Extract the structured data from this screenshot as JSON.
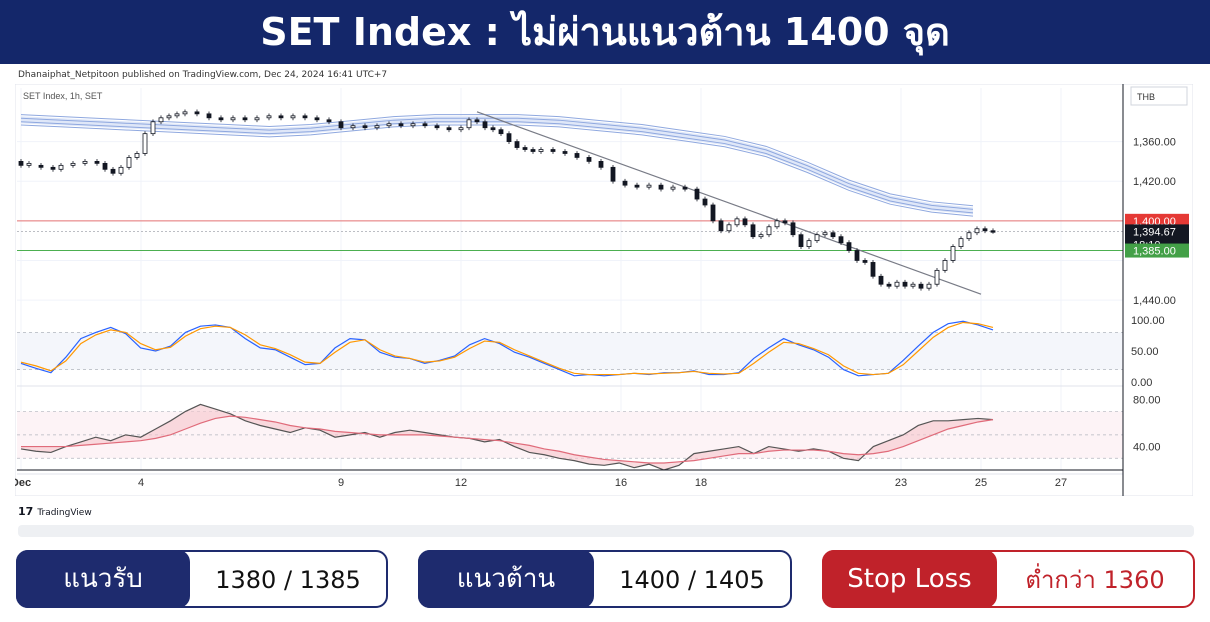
{
  "header": {
    "title": "SET Index : ไม่ผ่านแนวต้าน 1400 จุด"
  },
  "attribution": "Dhanaiphat_Netpitoon published on TradingView.com, Dec 24, 2024 16:41 UTC+7",
  "footer": {
    "logo_text": "TradingView"
  },
  "levels": {
    "support": {
      "label": "แนวรับ",
      "value": "1380 / 1385"
    },
    "resistance": {
      "label": "แนวต้าน",
      "value": "1400 / 1405"
    },
    "stop": {
      "label": "Stop Loss",
      "value": "ต่ำกว่า 1360"
    }
  },
  "colors": {
    "navy": "#1e2b6e",
    "stop_red": "#c0222a",
    "resistance_line": "#e57373",
    "support_line": "#4caf50",
    "ribbon": "#8fa8df",
    "stoch_k": "#2962ff",
    "stoch_d": "#ff9800",
    "rsi": "#555555",
    "rsi_ma": "#e06b7a"
  },
  "chart_data": [
    {
      "type": "candlestick",
      "symbol_label": "SET Index, 1h, SET",
      "currency": "THB",
      "x_tick_labels": [
        "Dec",
        "4",
        "9",
        "12",
        "16",
        "18",
        "23",
        "25",
        "27"
      ],
      "y_ticks": [
        1360.0,
        1380.0,
        1400.0,
        1420.0,
        1440.0
      ],
      "y_tick_labels": [
        "1,360.00",
        "1,420.00",
        "1,440.00"
      ],
      "ylim": [
        1350,
        1460
      ],
      "price_tags": {
        "resistance": "1,400.00",
        "current": "1,394.67",
        "countdown": "18:10",
        "support": "1,385.00"
      },
      "horizontal_lines": {
        "resistance": 1400,
        "current": 1394.67,
        "support": 1385
      },
      "ribbon": [
        1451,
        1450,
        1449,
        1448,
        1447,
        1446,
        1445,
        1446,
        1448,
        1450,
        1451,
        1451,
        1451,
        1450,
        1448,
        1446,
        1443,
        1440,
        1435,
        1427,
        1418,
        1411,
        1407,
        1405
      ],
      "trendline": [
        [
          12.4,
          1455
        ],
        [
          25,
          1363
        ]
      ],
      "candles": [
        {
          "x": 1.0,
          "o": 1430,
          "c": 1428
        },
        {
          "x": 1.2,
          "o": 1428,
          "c": 1429
        },
        {
          "x": 1.5,
          "o": 1428,
          "c": 1427
        },
        {
          "x": 1.8,
          "o": 1427,
          "c": 1426
        },
        {
          "x": 2.0,
          "o": 1426,
          "c": 1428
        },
        {
          "x": 2.3,
          "o": 1428,
          "c": 1429
        },
        {
          "x": 2.6,
          "o": 1429,
          "c": 1430
        },
        {
          "x": 2.9,
          "o": 1430,
          "c": 1429
        },
        {
          "x": 3.1,
          "o": 1429,
          "c": 1426
        },
        {
          "x": 3.3,
          "o": 1426,
          "c": 1424
        },
        {
          "x": 3.5,
          "o": 1424,
          "c": 1427
        },
        {
          "x": 3.7,
          "o": 1427,
          "c": 1432
        },
        {
          "x": 3.9,
          "o": 1432,
          "c": 1434
        },
        {
          "x": 4.1,
          "o": 1434,
          "c": 1444
        },
        {
          "x": 4.3,
          "o": 1444,
          "c": 1450
        },
        {
          "x": 4.5,
          "o": 1450,
          "c": 1452
        },
        {
          "x": 4.7,
          "o": 1452,
          "c": 1453
        },
        {
          "x": 4.9,
          "o": 1453,
          "c": 1454
        },
        {
          "x": 5.1,
          "o": 1454,
          "c": 1455
        },
        {
          "x": 5.4,
          "o": 1455,
          "c": 1454
        },
        {
          "x": 5.7,
          "o": 1454,
          "c": 1452
        },
        {
          "x": 6.0,
          "o": 1452,
          "c": 1451
        },
        {
          "x": 6.3,
          "o": 1451,
          "c": 1452
        },
        {
          "x": 6.6,
          "o": 1452,
          "c": 1451
        },
        {
          "x": 6.9,
          "o": 1451,
          "c": 1452
        },
        {
          "x": 7.2,
          "o": 1452,
          "c": 1453
        },
        {
          "x": 7.5,
          "o": 1453,
          "c": 1452
        },
        {
          "x": 7.8,
          "o": 1452,
          "c": 1453
        },
        {
          "x": 8.1,
          "o": 1453,
          "c": 1452
        },
        {
          "x": 8.4,
          "o": 1452,
          "c": 1451
        },
        {
          "x": 8.7,
          "o": 1451,
          "c": 1450
        },
        {
          "x": 9.0,
          "o": 1450,
          "c": 1447
        },
        {
          "x": 9.3,
          "o": 1447,
          "c": 1448
        },
        {
          "x": 9.6,
          "o": 1448,
          "c": 1447
        },
        {
          "x": 9.9,
          "o": 1447,
          "c": 1448
        },
        {
          "x": 10.2,
          "o": 1448,
          "c": 1449
        },
        {
          "x": 10.5,
          "o": 1449,
          "c": 1448
        },
        {
          "x": 10.8,
          "o": 1448,
          "c": 1449
        },
        {
          "x": 11.1,
          "o": 1449,
          "c": 1448
        },
        {
          "x": 11.4,
          "o": 1448,
          "c": 1447
        },
        {
          "x": 11.7,
          "o": 1447,
          "c": 1446
        },
        {
          "x": 12.0,
          "o": 1446,
          "c": 1447
        },
        {
          "x": 12.2,
          "o": 1447,
          "c": 1451
        },
        {
          "x": 12.4,
          "o": 1451,
          "c": 1450
        },
        {
          "x": 12.6,
          "o": 1450,
          "c": 1447
        },
        {
          "x": 12.8,
          "o": 1447,
          "c": 1446
        },
        {
          "x": 13.0,
          "o": 1446,
          "c": 1444
        },
        {
          "x": 13.2,
          "o": 1444,
          "c": 1440
        },
        {
          "x": 13.4,
          "o": 1440,
          "c": 1437
        },
        {
          "x": 13.6,
          "o": 1437,
          "c": 1436
        },
        {
          "x": 13.8,
          "o": 1436,
          "c": 1435
        },
        {
          "x": 14.0,
          "o": 1435,
          "c": 1436
        },
        {
          "x": 14.3,
          "o": 1436,
          "c": 1435
        },
        {
          "x": 14.6,
          "o": 1435,
          "c": 1434
        },
        {
          "x": 14.9,
          "o": 1434,
          "c": 1432
        },
        {
          "x": 15.2,
          "o": 1432,
          "c": 1430
        },
        {
          "x": 15.5,
          "o": 1430,
          "c": 1427
        },
        {
          "x": 15.8,
          "o": 1427,
          "c": 1420
        },
        {
          "x": 16.1,
          "o": 1420,
          "c": 1418
        },
        {
          "x": 16.4,
          "o": 1418,
          "c": 1417
        },
        {
          "x": 16.7,
          "o": 1417,
          "c": 1418
        },
        {
          "x": 17.0,
          "o": 1418,
          "c": 1416
        },
        {
          "x": 17.3,
          "o": 1416,
          "c": 1417
        },
        {
          "x": 17.6,
          "o": 1417,
          "c": 1416
        },
        {
          "x": 17.9,
          "o": 1416,
          "c": 1411
        },
        {
          "x": 18.1,
          "o": 1411,
          "c": 1408
        },
        {
          "x": 18.3,
          "o": 1408,
          "c": 1400
        },
        {
          "x": 18.5,
          "o": 1400,
          "c": 1395
        },
        {
          "x": 18.7,
          "o": 1395,
          "c": 1398
        },
        {
          "x": 18.9,
          "o": 1398,
          "c": 1401
        },
        {
          "x": 19.1,
          "o": 1401,
          "c": 1398
        },
        {
          "x": 19.3,
          "o": 1398,
          "c": 1392
        },
        {
          "x": 19.5,
          "o": 1392,
          "c": 1393
        },
        {
          "x": 19.7,
          "o": 1393,
          "c": 1397
        },
        {
          "x": 19.9,
          "o": 1397,
          "c": 1400
        },
        {
          "x": 20.1,
          "o": 1400,
          "c": 1399
        },
        {
          "x": 20.3,
          "o": 1399,
          "c": 1393
        },
        {
          "x": 20.5,
          "o": 1393,
          "c": 1387
        },
        {
          "x": 20.7,
          "o": 1387,
          "c": 1390
        },
        {
          "x": 20.9,
          "o": 1390,
          "c": 1393
        },
        {
          "x": 21.1,
          "o": 1393,
          "c": 1394
        },
        {
          "x": 21.3,
          "o": 1394,
          "c": 1392
        },
        {
          "x": 21.5,
          "o": 1392,
          "c": 1389
        },
        {
          "x": 21.7,
          "o": 1389,
          "c": 1385
        },
        {
          "x": 21.9,
          "o": 1385,
          "c": 1380
        },
        {
          "x": 22.1,
          "o": 1380,
          "c": 1379
        },
        {
          "x": 22.3,
          "o": 1379,
          "c": 1372
        },
        {
          "x": 22.5,
          "o": 1372,
          "c": 1368
        },
        {
          "x": 22.7,
          "o": 1368,
          "c": 1367
        },
        {
          "x": 22.9,
          "o": 1367,
          "c": 1369
        },
        {
          "x": 23.1,
          "o": 1369,
          "c": 1367
        },
        {
          "x": 23.3,
          "o": 1367,
          "c": 1368
        },
        {
          "x": 23.5,
          "o": 1368,
          "c": 1366
        },
        {
          "x": 23.7,
          "o": 1366,
          "c": 1368
        },
        {
          "x": 23.9,
          "o": 1368,
          "c": 1375
        },
        {
          "x": 24.1,
          "o": 1375,
          "c": 1380
        },
        {
          "x": 24.3,
          "o": 1380,
          "c": 1387
        },
        {
          "x": 24.5,
          "o": 1387,
          "c": 1391
        },
        {
          "x": 24.7,
          "o": 1391,
          "c": 1394
        },
        {
          "x": 24.9,
          "o": 1394,
          "c": 1396
        },
        {
          "x": 25.1,
          "o": 1396,
          "c": 1395
        },
        {
          "x": 25.3,
          "o": 1395,
          "c": 1394.67
        }
      ]
    },
    {
      "type": "line",
      "indicator": "stochastic",
      "y_tick_labels": [
        "100.00",
        "50.00",
        "0.00"
      ],
      "ylim": [
        0,
        100
      ],
      "guides": [
        80,
        20
      ],
      "series": [
        {
          "values": [
            30,
            22,
            15,
            40,
            70,
            80,
            88,
            78,
            55,
            50,
            58,
            80,
            90,
            92,
            88,
            70,
            55,
            52,
            40,
            28,
            30,
            55,
            70,
            68,
            48,
            40,
            38,
            30,
            35,
            42,
            60,
            70,
            62,
            48,
            40,
            30,
            20,
            10,
            12,
            10,
            12,
            14,
            12,
            15,
            15,
            18,
            12,
            12,
            15,
            38,
            55,
            70,
            60,
            52,
            40,
            20,
            10,
            12,
            14,
            35,
            58,
            80,
            94,
            98,
            92,
            84
          ]
        },
        {
          "values": [
            32,
            26,
            18,
            34,
            62,
            76,
            84,
            80,
            62,
            52,
            56,
            74,
            86,
            90,
            88,
            76,
            60,
            54,
            44,
            32,
            30,
            48,
            64,
            68,
            52,
            42,
            38,
            32,
            34,
            40,
            54,
            66,
            64,
            52,
            42,
            32,
            22,
            14,
            12,
            12,
            12,
            14,
            13,
            14,
            15,
            17,
            14,
            13,
            14,
            30,
            48,
            64,
            62,
            54,
            44,
            26,
            14,
            12,
            14,
            28,
            50,
            72,
            88,
            96,
            94,
            88
          ]
        }
      ]
    },
    {
      "type": "line",
      "indicator": "rsi",
      "y_tick_labels": [
        "80.00",
        "40.00"
      ],
      "ylim": [
        20,
        90
      ],
      "guides": [
        70,
        50,
        30
      ],
      "series": [
        {
          "values": [
            38,
            36,
            35,
            40,
            44,
            48,
            45,
            50,
            48,
            55,
            62,
            70,
            76,
            72,
            68,
            62,
            58,
            55,
            52,
            56,
            54,
            48,
            50,
            52,
            48,
            52,
            54,
            52,
            50,
            48,
            47,
            44,
            46,
            40,
            35,
            33,
            30,
            28,
            25,
            24,
            26,
            22,
            25,
            20,
            24,
            34,
            36,
            38,
            40,
            34,
            40,
            38,
            36,
            38,
            36,
            30,
            28,
            40,
            45,
            50,
            58,
            62,
            62,
            63,
            64,
            63
          ]
        },
        {
          "values": [
            40,
            40,
            40,
            40,
            41,
            42,
            43,
            44,
            45,
            47,
            50,
            55,
            60,
            64,
            66,
            65,
            63,
            61,
            58,
            56,
            55,
            53,
            52,
            51,
            50,
            50,
            50,
            50,
            49,
            48,
            47,
            46,
            45,
            43,
            41,
            38,
            36,
            33,
            31,
            29,
            28,
            27,
            26,
            26,
            27,
            28,
            30,
            32,
            34,
            34,
            36,
            37,
            37,
            37,
            36,
            34,
            33,
            34,
            36,
            40,
            45,
            50,
            55,
            58,
            61,
            63
          ]
        }
      ]
    }
  ]
}
